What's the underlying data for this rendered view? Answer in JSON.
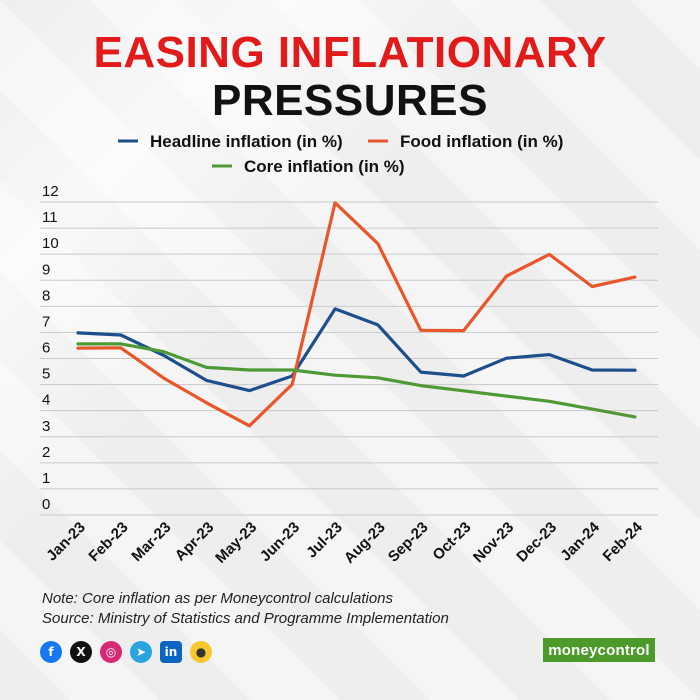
{
  "chart_data": {
    "type": "line",
    "title": "EASING INFLATIONARY",
    "subtitle": "PRESSURES",
    "categories": [
      "Jan-23",
      "Feb-23",
      "Mar-23",
      "Apr-23",
      "May-23",
      "Jun-23",
      "Jul-23",
      "Aug-23",
      "Sep-23",
      "Oct-23",
      "Nov-23",
      "Dec-23",
      "Jan-24",
      "Feb-24"
    ],
    "series": [
      {
        "name": "Headline inflation (in %)",
        "color": "#1f4e8c",
        "values": [
          6.52,
          6.44,
          5.66,
          4.7,
          4.31,
          4.87,
          7.44,
          6.83,
          5.02,
          4.87,
          5.55,
          5.69,
          5.1,
          5.09
        ]
      },
      {
        "name": "Food inflation (in %)",
        "color": "#e8562a",
        "values": [
          5.94,
          5.95,
          4.79,
          3.84,
          2.96,
          4.55,
          11.51,
          9.94,
          6.62,
          6.61,
          8.7,
          9.53,
          8.3,
          8.66
        ]
      },
      {
        "name": "Core inflation (in %)",
        "color": "#4f9a37",
        "values": [
          6.1,
          6.1,
          5.8,
          5.2,
          5.1,
          5.1,
          4.9,
          4.8,
          4.5,
          4.3,
          4.1,
          3.9,
          3.6,
          3.3
        ]
      }
    ],
    "ylim": [
      0,
      12
    ],
    "yticks": [
      "0",
      "1",
      "2",
      "3",
      "4",
      "5",
      "6",
      "7",
      "8",
      "9",
      "10",
      "11",
      "12"
    ],
    "grid": true,
    "legend_position": "top"
  },
  "notes": {
    "note": "Note: Core inflation as per Moneycontrol calculations",
    "source": "Source: Ministry of Statistics and Programme Implementation"
  },
  "social_icons": [
    "facebook-icon",
    "x-icon",
    "instagram-icon",
    "telegram-icon",
    "linkedin-icon",
    "koo-icon"
  ],
  "brand": "moneycontrol"
}
